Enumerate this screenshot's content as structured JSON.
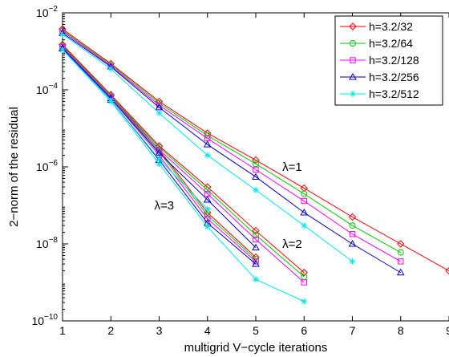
{
  "chart_data": {
    "type": "line",
    "title": "",
    "xlabel": "multigrid V−cycle iterations",
    "ylabel": "2−norm of the residual",
    "xlim": [
      1,
      9
    ],
    "ylim": [
      1e-10,
      0.01
    ],
    "yscale": "log",
    "grid": false,
    "legend_position": "top-right",
    "x_ticks": [
      "1",
      "2",
      "3",
      "4",
      "5",
      "6",
      "7",
      "8",
      "9"
    ],
    "y_ticks": [
      {
        "value": 0.01,
        "base": "10",
        "exp": "−2"
      },
      {
        "value": 0.0001,
        "base": "10",
        "exp": "−4"
      },
      {
        "value": 1e-06,
        "base": "10",
        "exp": "−6"
      },
      {
        "value": 1e-08,
        "base": "10",
        "exp": "−8"
      },
      {
        "value": 1e-10,
        "base": "10",
        "exp": "−10"
      }
    ],
    "annotations": [
      {
        "text": "λ=1",
        "x": 5.55,
        "y": 1e-06
      },
      {
        "text": "λ=2",
        "x": 5.55,
        "y": 1e-08
      },
      {
        "text": "λ=3",
        "x": 2.9,
        "y": 1e-07
      }
    ],
    "series": [
      {
        "name": "h=3.2/32",
        "color": "#ff0000",
        "marker": "diamond",
        "groups": [
          {
            "lambda": 1,
            "x": [
              1,
              2,
              3,
              4,
              5,
              6,
              7,
              8,
              9
            ],
            "y": [
              0.0038,
              0.00048,
              5e-05,
              7.5e-06,
              1.5e-06,
              2.8e-07,
              5e-08,
              1e-08,
              2e-09
            ]
          },
          {
            "lambda": 2,
            "x": [
              1,
              2,
              3,
              4,
              5,
              6
            ],
            "y": [
              0.0015,
              7.5e-05,
              3.5e-06,
              3e-07,
              2.2e-08,
              1.8e-09
            ]
          },
          {
            "lambda": 3,
            "x": [
              1,
              2,
              3,
              4,
              5
            ],
            "y": [
              0.0015,
              7e-05,
              2.8e-06,
              6.5e-08,
              4.5e-09
            ]
          }
        ]
      },
      {
        "name": "h=3.2/64",
        "color": "#00cc00",
        "marker": "circle",
        "groups": [
          {
            "lambda": 1,
            "x": [
              1,
              2,
              3,
              4,
              5,
              6,
              7,
              8
            ],
            "y": [
              0.0035,
              0.00045,
              4.5e-05,
              6.5e-06,
              1.2e-06,
              2e-07,
              3e-08,
              6e-09
            ]
          },
          {
            "lambda": 2,
            "x": [
              1,
              2,
              3,
              4,
              5,
              6
            ],
            "y": [
              0.0014,
              7e-05,
              3.2e-06,
              2.5e-07,
              1.7e-08,
              1.4e-09
            ]
          },
          {
            "lambda": 3,
            "x": [
              1,
              2,
              3,
              4,
              5
            ],
            "y": [
              0.0014,
              6.5e-05,
              2.5e-06,
              5.5e-08,
              4e-09
            ]
          }
        ]
      },
      {
        "name": "h=3.2/128",
        "color": "#ff00ff",
        "marker": "square",
        "groups": [
          {
            "lambda": 1,
            "x": [
              1,
              2,
              3,
              4,
              5,
              6,
              7,
              8
            ],
            "y": [
              0.0033,
              0.00042,
              4e-05,
              5.5e-06,
              8.5e-07,
              1.3e-07,
              1.8e-08,
              3.5e-09
            ]
          },
          {
            "lambda": 2,
            "x": [
              1,
              2,
              3,
              4,
              5,
              6
            ],
            "y": [
              0.0013,
              6.5e-05,
              2.8e-06,
              2e-07,
              1.3e-08,
              1e-09
            ]
          },
          {
            "lambda": 3,
            "x": [
              1,
              2,
              3,
              4,
              5
            ],
            "y": [
              0.0013,
              6e-05,
              2e-06,
              4.5e-08,
              3.5e-09
            ]
          }
        ]
      },
      {
        "name": "h=3.2/256",
        "color": "#0000cc",
        "marker": "triangle",
        "groups": [
          {
            "lambda": 1,
            "x": [
              1,
              2,
              3,
              4,
              5,
              6,
              7,
              8
            ],
            "y": [
              0.003,
              0.0004,
              3.5e-05,
              3.8e-06,
              5.5e-07,
              6.5e-08,
              1e-08,
              1.8e-09
            ]
          },
          {
            "lambda": 2,
            "x": [
              1,
              2,
              3,
              4,
              5
            ],
            "y": [
              0.0012,
              6e-05,
              2.3e-06,
              1.4e-07,
              8e-09
            ]
          },
          {
            "lambda": 3,
            "x": [
              1,
              2,
              3,
              4,
              5
            ],
            "y": [
              0.0012,
              5.5e-05,
              1.5e-06,
              3.5e-08,
              3e-09
            ]
          }
        ]
      },
      {
        "name": "h=3.2/512",
        "color": "#00e5ee",
        "marker": "star",
        "groups": [
          {
            "lambda": 1,
            "x": [
              1,
              2,
              3,
              4,
              5,
              6,
              7
            ],
            "y": [
              0.0028,
              0.00035,
              2.5e-05,
              2e-06,
              2.5e-07,
              3e-08,
              3.5e-09
            ]
          },
          {
            "lambda": 2,
            "x": [
              1,
              2,
              3,
              4
            ],
            "y": [
              0.0011,
              5.5e-05,
              1.6e-06,
              8e-08
            ]
          },
          {
            "lambda": 3,
            "x": [
              1,
              2,
              3,
              4,
              5,
              6
            ],
            "y": [
              0.0011,
              5e-05,
              1.2e-06,
              2.8e-08,
              1.2e-09,
              3.2e-10
            ]
          }
        ]
      }
    ]
  }
}
